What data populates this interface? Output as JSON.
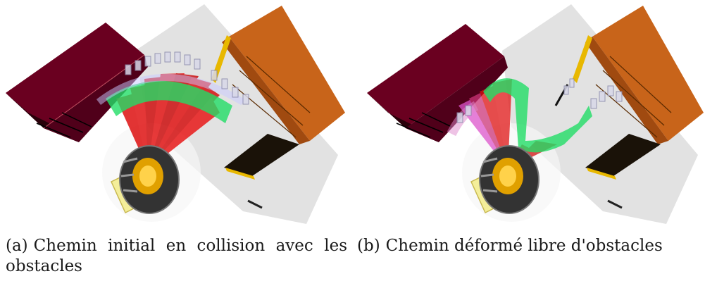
{
  "figure": {
    "subfigures": [
      {
        "tag": "(a)",
        "caption": "Chemin initial en collision avec les obstacles"
      },
      {
        "tag": "(b)",
        "caption": "Chemin déformé libre d'obstacles"
      }
    ]
  },
  "colors": {
    "wall": "#e0e0e0",
    "left_obstacle": "#6a0020",
    "right_obstacle": "#c8641a",
    "edge_yellow": "#e8b800",
    "arm_red": "#dd1111",
    "link_green": "#22dd66",
    "link_magenta": "#dd55cc",
    "base_dark": "#333333",
    "base_gold": "#e0a000",
    "pad_yellow": "#f4ee9a"
  }
}
